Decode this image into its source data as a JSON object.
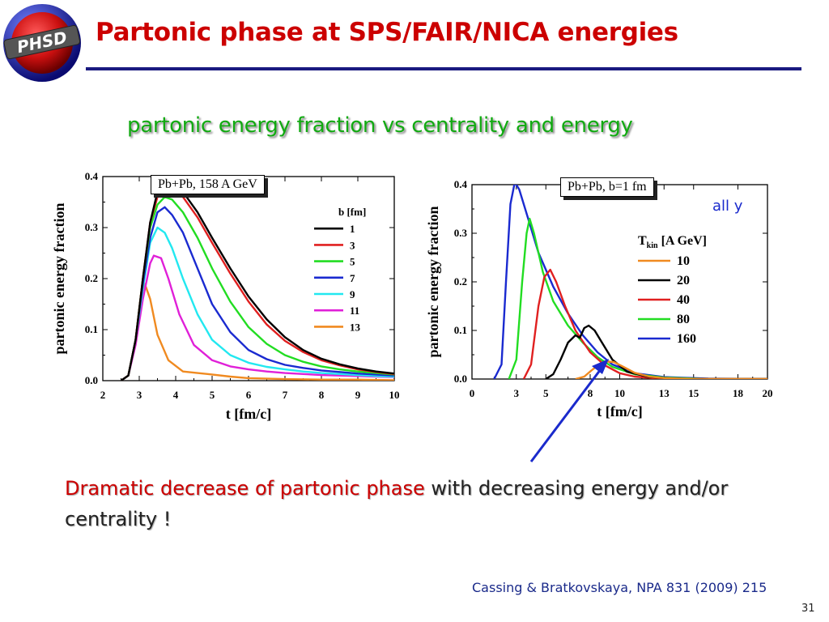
{
  "logo": {
    "text": "PHSD"
  },
  "title": "Partonic phase at SPS/FAIR/NICA energies",
  "subtitle": "partonic energy fraction vs centrality and energy",
  "statement": {
    "highlight": "Dramatic decrease of partonic phase",
    "rest": " with decreasing energy and/or centrality !"
  },
  "citation": "Cassing & Bratkovskaya,  NPA 831 (2009) 215",
  "page_number": "31",
  "colors": {
    "title": "#cc0000",
    "subtitle": "#11aa11",
    "rule": "#1a1a80",
    "arrow": "#1a2acc"
  },
  "chart_data": [
    {
      "type": "line",
      "box_label": "Pb+Pb,  158 A GeV",
      "xlabel": "t [fm/c]",
      "ylabel": "partonic energy fraction",
      "xlim": [
        2,
        10
      ],
      "ylim": [
        0,
        0.4
      ],
      "xticks": [
        "2",
        "3",
        "4",
        "5",
        "6",
        "7",
        "8",
        "9",
        "10"
      ],
      "yticks": [
        "0.0",
        "0.1",
        "0.2",
        "0.3",
        "0.4"
      ],
      "legend_title": "b [fm]",
      "legend_position": "top-right",
      "series": [
        {
          "name": "1",
          "color": "#000000",
          "points": [
            [
              2.5,
              0
            ],
            [
              2.7,
              0.01
            ],
            [
              2.9,
              0.08
            ],
            [
              3.1,
              0.2
            ],
            [
              3.3,
              0.31
            ],
            [
              3.5,
              0.37
            ],
            [
              3.7,
              0.4
            ],
            [
              3.9,
              0.395
            ],
            [
              4.2,
              0.37
            ],
            [
              4.6,
              0.33
            ],
            [
              5,
              0.28
            ],
            [
              5.5,
              0.22
            ],
            [
              6,
              0.165
            ],
            [
              6.5,
              0.12
            ],
            [
              7,
              0.085
            ],
            [
              7.5,
              0.06
            ],
            [
              8,
              0.043
            ],
            [
              8.5,
              0.032
            ],
            [
              9,
              0.024
            ],
            [
              9.5,
              0.018
            ],
            [
              10,
              0.014
            ]
          ]
        },
        {
          "name": "3",
          "color": "#e02020",
          "points": [
            [
              2.5,
              0
            ],
            [
              2.7,
              0.01
            ],
            [
              2.9,
              0.08
            ],
            [
              3.1,
              0.2
            ],
            [
              3.3,
              0.31
            ],
            [
              3.5,
              0.36
            ],
            [
              3.7,
              0.39
            ],
            [
              3.9,
              0.385
            ],
            [
              4.2,
              0.36
            ],
            [
              4.6,
              0.32
            ],
            [
              5,
              0.27
            ],
            [
              5.5,
              0.21
            ],
            [
              6,
              0.155
            ],
            [
              6.5,
              0.11
            ],
            [
              7,
              0.078
            ],
            [
              7.5,
              0.056
            ],
            [
              8,
              0.04
            ],
            [
              8.5,
              0.03
            ],
            [
              9,
              0.022
            ],
            [
              9.5,
              0.017
            ],
            [
              10,
              0.013
            ]
          ]
        },
        {
          "name": "5",
          "color": "#22dd22",
          "points": [
            [
              2.5,
              0
            ],
            [
              2.7,
              0.01
            ],
            [
              2.9,
              0.08
            ],
            [
              3.1,
              0.2
            ],
            [
              3.3,
              0.3
            ],
            [
              3.5,
              0.345
            ],
            [
              3.7,
              0.36
            ],
            [
              3.9,
              0.355
            ],
            [
              4.2,
              0.33
            ],
            [
              4.6,
              0.28
            ],
            [
              5,
              0.22
            ],
            [
              5.5,
              0.155
            ],
            [
              6,
              0.105
            ],
            [
              6.5,
              0.072
            ],
            [
              7,
              0.05
            ],
            [
              7.5,
              0.037
            ],
            [
              8,
              0.028
            ],
            [
              8.5,
              0.022
            ],
            [
              9,
              0.018
            ],
            [
              9.5,
              0.015
            ],
            [
              10,
              0.012
            ]
          ]
        },
        {
          "name": "7",
          "color": "#1a2ad0",
          "points": [
            [
              2.5,
              0
            ],
            [
              2.7,
              0.01
            ],
            [
              2.9,
              0.08
            ],
            [
              3.1,
              0.19
            ],
            [
              3.3,
              0.28
            ],
            [
              3.5,
              0.33
            ],
            [
              3.7,
              0.34
            ],
            [
              3.9,
              0.325
            ],
            [
              4.2,
              0.29
            ],
            [
              4.6,
              0.22
            ],
            [
              5,
              0.15
            ],
            [
              5.5,
              0.095
            ],
            [
              6,
              0.06
            ],
            [
              6.5,
              0.042
            ],
            [
              7,
              0.031
            ],
            [
              7.5,
              0.025
            ],
            [
              8,
              0.02
            ],
            [
              8.5,
              0.017
            ],
            [
              9,
              0.014
            ],
            [
              9.5,
              0.012
            ],
            [
              10,
              0.01
            ]
          ]
        },
        {
          "name": "9",
          "color": "#22e8f0",
          "points": [
            [
              2.5,
              0
            ],
            [
              2.7,
              0.01
            ],
            [
              2.9,
              0.08
            ],
            [
              3.1,
              0.18
            ],
            [
              3.3,
              0.27
            ],
            [
              3.5,
              0.3
            ],
            [
              3.7,
              0.29
            ],
            [
              3.9,
              0.26
            ],
            [
              4.2,
              0.2
            ],
            [
              4.6,
              0.13
            ],
            [
              5,
              0.08
            ],
            [
              5.5,
              0.05
            ],
            [
              6,
              0.035
            ],
            [
              6.5,
              0.027
            ],
            [
              7,
              0.022
            ],
            [
              7.5,
              0.018
            ],
            [
              8,
              0.015
            ],
            [
              8.5,
              0.013
            ],
            [
              9,
              0.011
            ],
            [
              9.5,
              0.009
            ],
            [
              10,
              0.008
            ]
          ]
        },
        {
          "name": "11",
          "color": "#e020d8",
          "points": [
            [
              2.5,
              0
            ],
            [
              2.7,
              0.01
            ],
            [
              2.9,
              0.07
            ],
            [
              3.1,
              0.16
            ],
            [
              3.3,
              0.23
            ],
            [
              3.4,
              0.245
            ],
            [
              3.6,
              0.24
            ],
            [
              3.8,
              0.2
            ],
            [
              4.1,
              0.13
            ],
            [
              4.5,
              0.07
            ],
            [
              5,
              0.04
            ],
            [
              5.5,
              0.028
            ],
            [
              6,
              0.022
            ],
            [
              6.5,
              0.018
            ],
            [
              7,
              0.015
            ],
            [
              7.5,
              0.013
            ],
            [
              8,
              0.011
            ],
            [
              8.5,
              0.01
            ],
            [
              9,
              0.009
            ],
            [
              9.5,
              0.008
            ],
            [
              10,
              0.007
            ]
          ]
        },
        {
          "name": "13",
          "color": "#f08a20",
          "points": [
            [
              2.5,
              0
            ],
            [
              2.7,
              0.01
            ],
            [
              2.9,
              0.08
            ],
            [
              3.05,
              0.17
            ],
            [
              3.15,
              0.19
            ],
            [
              3.3,
              0.16
            ],
            [
              3.5,
              0.09
            ],
            [
              3.8,
              0.04
            ],
            [
              4.2,
              0.018
            ],
            [
              4.6,
              0.015
            ],
            [
              5,
              0.012
            ],
            [
              5.5,
              0.008
            ],
            [
              6,
              0.005
            ],
            [
              7,
              0.003
            ],
            [
              8,
              0.002
            ],
            [
              9,
              0.002
            ],
            [
              10,
              0.001
            ]
          ]
        }
      ]
    },
    {
      "type": "line",
      "box_label": "Pb+Pb, b=1 fm",
      "annotation": "all y",
      "xlabel": "t [fm/c]",
      "ylabel": "partonic energy fraction",
      "xlim": [
        0,
        20
      ],
      "ylim": [
        0,
        0.4
      ],
      "xticks": [
        "0",
        "3",
        "5",
        "8",
        "10",
        "13",
        "15",
        "18",
        "20"
      ],
      "yticks": [
        "0.0",
        "0.1",
        "0.2",
        "0.3",
        "0.4"
      ],
      "legend_title": "T",
      "legend_title_sub": "kin",
      "legend_title_unit": " [A GeV]",
      "legend_position": "right",
      "series": [
        {
          "name": "10",
          "color": "#f08a20",
          "points": [
            [
              7,
              0
            ],
            [
              7.6,
              0.005
            ],
            [
              8.1,
              0.018
            ],
            [
              8.6,
              0.03
            ],
            [
              9.1,
              0.036
            ],
            [
              9.6,
              0.035
            ],
            [
              10.2,
              0.026
            ],
            [
              11,
              0.013
            ],
            [
              12,
              0.005
            ],
            [
              13,
              0.002
            ],
            [
              15,
              0
            ],
            [
              20,
              0
            ]
          ]
        },
        {
          "name": "20",
          "color": "#000000",
          "points": [
            [
              5,
              0
            ],
            [
              5.5,
              0.01
            ],
            [
              6,
              0.04
            ],
            [
              6.5,
              0.075
            ],
            [
              7,
              0.09
            ],
            [
              7.3,
              0.085
            ],
            [
              7.6,
              0.105
            ],
            [
              7.9,
              0.11
            ],
            [
              8.3,
              0.1
            ],
            [
              8.8,
              0.075
            ],
            [
              9.5,
              0.04
            ],
            [
              10.5,
              0.015
            ],
            [
              12,
              0.004
            ],
            [
              14,
              0
            ],
            [
              20,
              0
            ]
          ]
        },
        {
          "name": "40",
          "color": "#e02020",
          "points": [
            [
              3.5,
              0
            ],
            [
              4,
              0.03
            ],
            [
              4.5,
              0.15
            ],
            [
              4.9,
              0.21
            ],
            [
              5.3,
              0.225
            ],
            [
              5.7,
              0.2
            ],
            [
              6.3,
              0.15
            ],
            [
              7,
              0.1
            ],
            [
              8,
              0.055
            ],
            [
              9,
              0.028
            ],
            [
              10,
              0.012
            ],
            [
              11,
              0.005
            ],
            [
              13,
              0
            ],
            [
              20,
              0
            ]
          ]
        },
        {
          "name": "80",
          "color": "#22dd22",
          "points": [
            [
              2.5,
              0
            ],
            [
              3,
              0.04
            ],
            [
              3.4,
              0.2
            ],
            [
              3.7,
              0.3
            ],
            [
              3.9,
              0.33
            ],
            [
              4.2,
              0.3
            ],
            [
              4.8,
              0.22
            ],
            [
              5.5,
              0.16
            ],
            [
              6.5,
              0.11
            ],
            [
              7.5,
              0.075
            ],
            [
              8.5,
              0.045
            ],
            [
              9.5,
              0.025
            ],
            [
              11,
              0.01
            ],
            [
              13,
              0.003
            ],
            [
              16,
              0
            ],
            [
              20,
              0
            ]
          ]
        },
        {
          "name": "160",
          "color": "#1a2ad0",
          "points": [
            [
              1.5,
              0
            ],
            [
              2,
              0.03
            ],
            [
              2.3,
              0.2
            ],
            [
              2.6,
              0.36
            ],
            [
              2.9,
              0.405
            ],
            [
              3.2,
              0.39
            ],
            [
              3.8,
              0.33
            ],
            [
              4.5,
              0.26
            ],
            [
              5.5,
              0.19
            ],
            [
              6.5,
              0.135
            ],
            [
              7.5,
              0.09
            ],
            [
              8.5,
              0.055
            ],
            [
              9.5,
              0.03
            ],
            [
              11,
              0.012
            ],
            [
              13,
              0.004
            ],
            [
              16,
              0.001
            ],
            [
              20,
              0
            ]
          ]
        }
      ]
    }
  ]
}
